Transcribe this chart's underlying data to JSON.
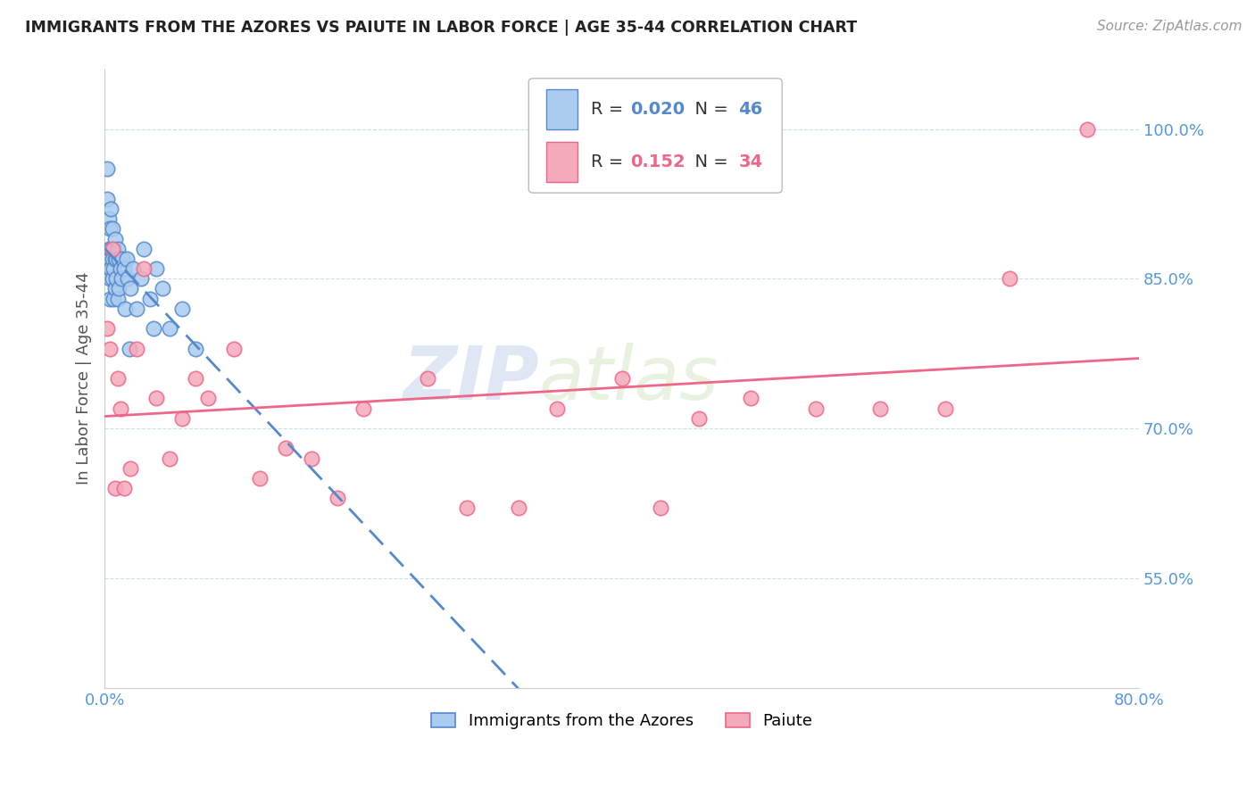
{
  "title": "IMMIGRANTS FROM THE AZORES VS PAIUTE IN LABOR FORCE | AGE 35-44 CORRELATION CHART",
  "source": "Source: ZipAtlas.com",
  "ylabel": "In Labor Force | Age 35-44",
  "xlim": [
    0.0,
    0.8
  ],
  "ylim": [
    0.44,
    1.06
  ],
  "yticks": [
    0.55,
    0.7,
    0.85,
    1.0
  ],
  "ytick_labels": [
    "55.0%",
    "70.0%",
    "85.0%",
    "100.0%"
  ],
  "xticks": [
    0.0,
    0.8
  ],
  "xtick_labels": [
    "0.0%",
    "80.0%"
  ],
  "legend1_label": "Immigrants from the Azores",
  "legend2_label": "Paiute",
  "r1": 0.02,
  "n1": 46,
  "r2": 0.152,
  "n2": 34,
  "blue_color": "#aaccf0",
  "pink_color": "#f5aabb",
  "blue_line_color": "#5588cc",
  "pink_line_color": "#ee6688",
  "watermark_zip": "ZIP",
  "watermark_atlas": "atlas",
  "azores_x": [
    0.002,
    0.002,
    0.003,
    0.003,
    0.004,
    0.004,
    0.004,
    0.004,
    0.005,
    0.005,
    0.005,
    0.006,
    0.006,
    0.006,
    0.007,
    0.007,
    0.007,
    0.008,
    0.008,
    0.008,
    0.009,
    0.009,
    0.01,
    0.01,
    0.011,
    0.011,
    0.012,
    0.013,
    0.014,
    0.015,
    0.016,
    0.017,
    0.018,
    0.019,
    0.02,
    0.022,
    0.025,
    0.028,
    0.03,
    0.035,
    0.038,
    0.04,
    0.045,
    0.05,
    0.06,
    0.07
  ],
  "azores_y": [
    0.96,
    0.93,
    0.91,
    0.88,
    0.9,
    0.87,
    0.85,
    0.83,
    0.92,
    0.88,
    0.86,
    0.9,
    0.87,
    0.85,
    0.88,
    0.86,
    0.83,
    0.89,
    0.87,
    0.84,
    0.87,
    0.85,
    0.88,
    0.83,
    0.87,
    0.84,
    0.86,
    0.85,
    0.87,
    0.86,
    0.82,
    0.87,
    0.85,
    0.78,
    0.84,
    0.86,
    0.82,
    0.85,
    0.88,
    0.83,
    0.8,
    0.86,
    0.84,
    0.8,
    0.82,
    0.78
  ],
  "paiute_x": [
    0.002,
    0.004,
    0.006,
    0.008,
    0.01,
    0.012,
    0.015,
    0.02,
    0.025,
    0.03,
    0.04,
    0.05,
    0.06,
    0.07,
    0.08,
    0.1,
    0.12,
    0.14,
    0.16,
    0.18,
    0.2,
    0.25,
    0.28,
    0.32,
    0.35,
    0.4,
    0.43,
    0.46,
    0.5,
    0.55,
    0.6,
    0.65,
    0.7,
    0.76
  ],
  "paiute_y": [
    0.8,
    0.78,
    0.88,
    0.64,
    0.75,
    0.72,
    0.64,
    0.66,
    0.78,
    0.86,
    0.73,
    0.67,
    0.71,
    0.75,
    0.73,
    0.78,
    0.65,
    0.68,
    0.67,
    0.63,
    0.72,
    0.75,
    0.62,
    0.62,
    0.72,
    0.75,
    0.62,
    0.71,
    0.73,
    0.72,
    0.72,
    0.72,
    0.85,
    1.0
  ]
}
